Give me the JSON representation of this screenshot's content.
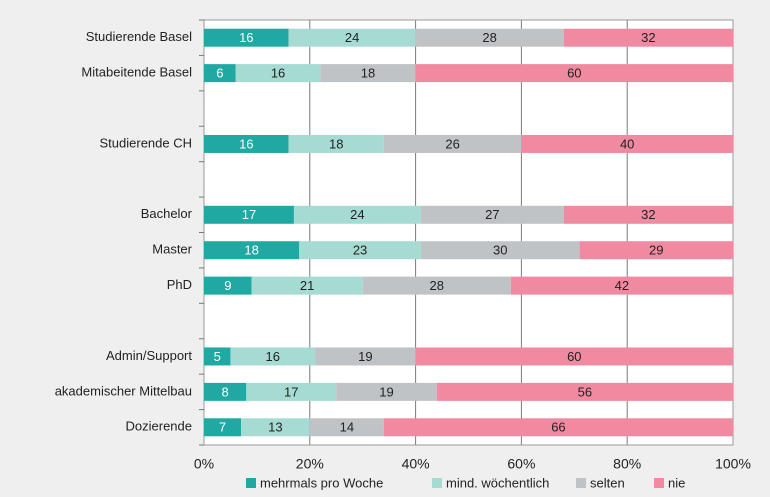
{
  "chart_data": {
    "type": "stacked_bar_horizontal",
    "categories": [
      "Studierende Basel",
      "Mitabeitende Basel",
      null,
      "Studierende CH",
      null,
      "Bachelor",
      "Master",
      "PhD",
      null,
      "Admin/Support",
      "akademischer Mittelbau",
      "Dozierende"
    ],
    "series": [
      {
        "name": "mehrmals pro Woche",
        "color": "#1fa9a2",
        "values": [
          16,
          6,
          null,
          16,
          null,
          17,
          18,
          9,
          null,
          5,
          8,
          7
        ]
      },
      {
        "name": "mind. wöchentlich",
        "color": "#a6dbd3",
        "values": [
          24,
          16,
          null,
          18,
          null,
          24,
          23,
          21,
          null,
          16,
          17,
          13
        ]
      },
      {
        "name": "selten",
        "color": "#bfc3c6",
        "values": [
          28,
          18,
          null,
          26,
          null,
          27,
          30,
          28,
          null,
          19,
          19,
          14
        ]
      },
      {
        "name": "nie",
        "color": "#ef8aa0",
        "values": [
          32,
          60,
          null,
          40,
          null,
          32,
          29,
          42,
          null,
          60,
          56,
          66
        ]
      }
    ],
    "xlim": [
      0,
      100
    ],
    "xticks": [
      {
        "value": 0,
        "label": "0%"
      },
      {
        "value": 20,
        "label": "20%"
      },
      {
        "value": 40,
        "label": "40%"
      },
      {
        "value": 60,
        "label": "60%"
      },
      {
        "value": 80,
        "label": "80%"
      },
      {
        "value": 100,
        "label": "100%"
      }
    ],
    "grid": true,
    "legend": "bottom"
  }
}
